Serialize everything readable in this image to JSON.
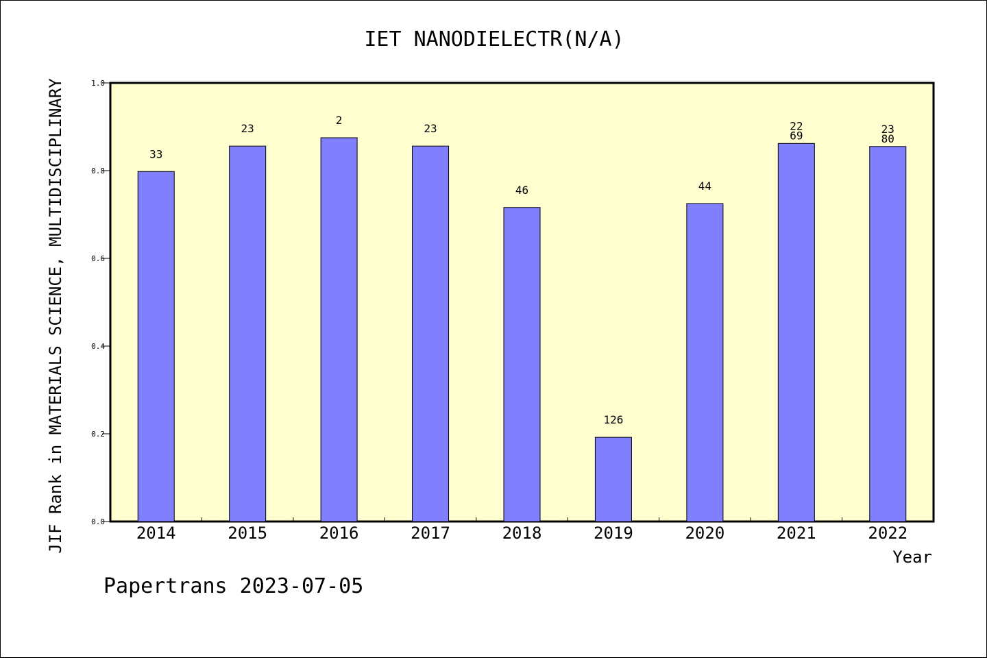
{
  "chart_data": {
    "type": "bar",
    "title": "IET NANODIELECTR(N/A)",
    "xlabel": "Year",
    "ylabel": "JIF Rank in MATERIALS SCIENCE, MULTIDISCIPLINARY",
    "categories": [
      "2014",
      "2015",
      "2016",
      "2017",
      "2018",
      "2019",
      "2020",
      "2021",
      "2022"
    ],
    "values": [
      0.798,
      0.856,
      0.875,
      0.856,
      0.716,
      0.192,
      0.725,
      0.862,
      0.855
    ],
    "data_labels": [
      [
        "33"
      ],
      [
        "23"
      ],
      [
        "2"
      ],
      [
        "23"
      ],
      [
        "46"
      ],
      [
        "126"
      ],
      [
        "44"
      ],
      [
        "22",
        "69"
      ],
      [
        "23",
        "80"
      ]
    ],
    "ylim": [
      0,
      1.0
    ],
    "yticks": [
      "0.0",
      "0.2",
      "0.4",
      "0.6",
      "0.8",
      "1.0"
    ],
    "grid": false,
    "colors": {
      "bar": "#8080ff",
      "plot_bg": "#ffffd0"
    }
  },
  "footer": "Papertrans 2023-07-05"
}
